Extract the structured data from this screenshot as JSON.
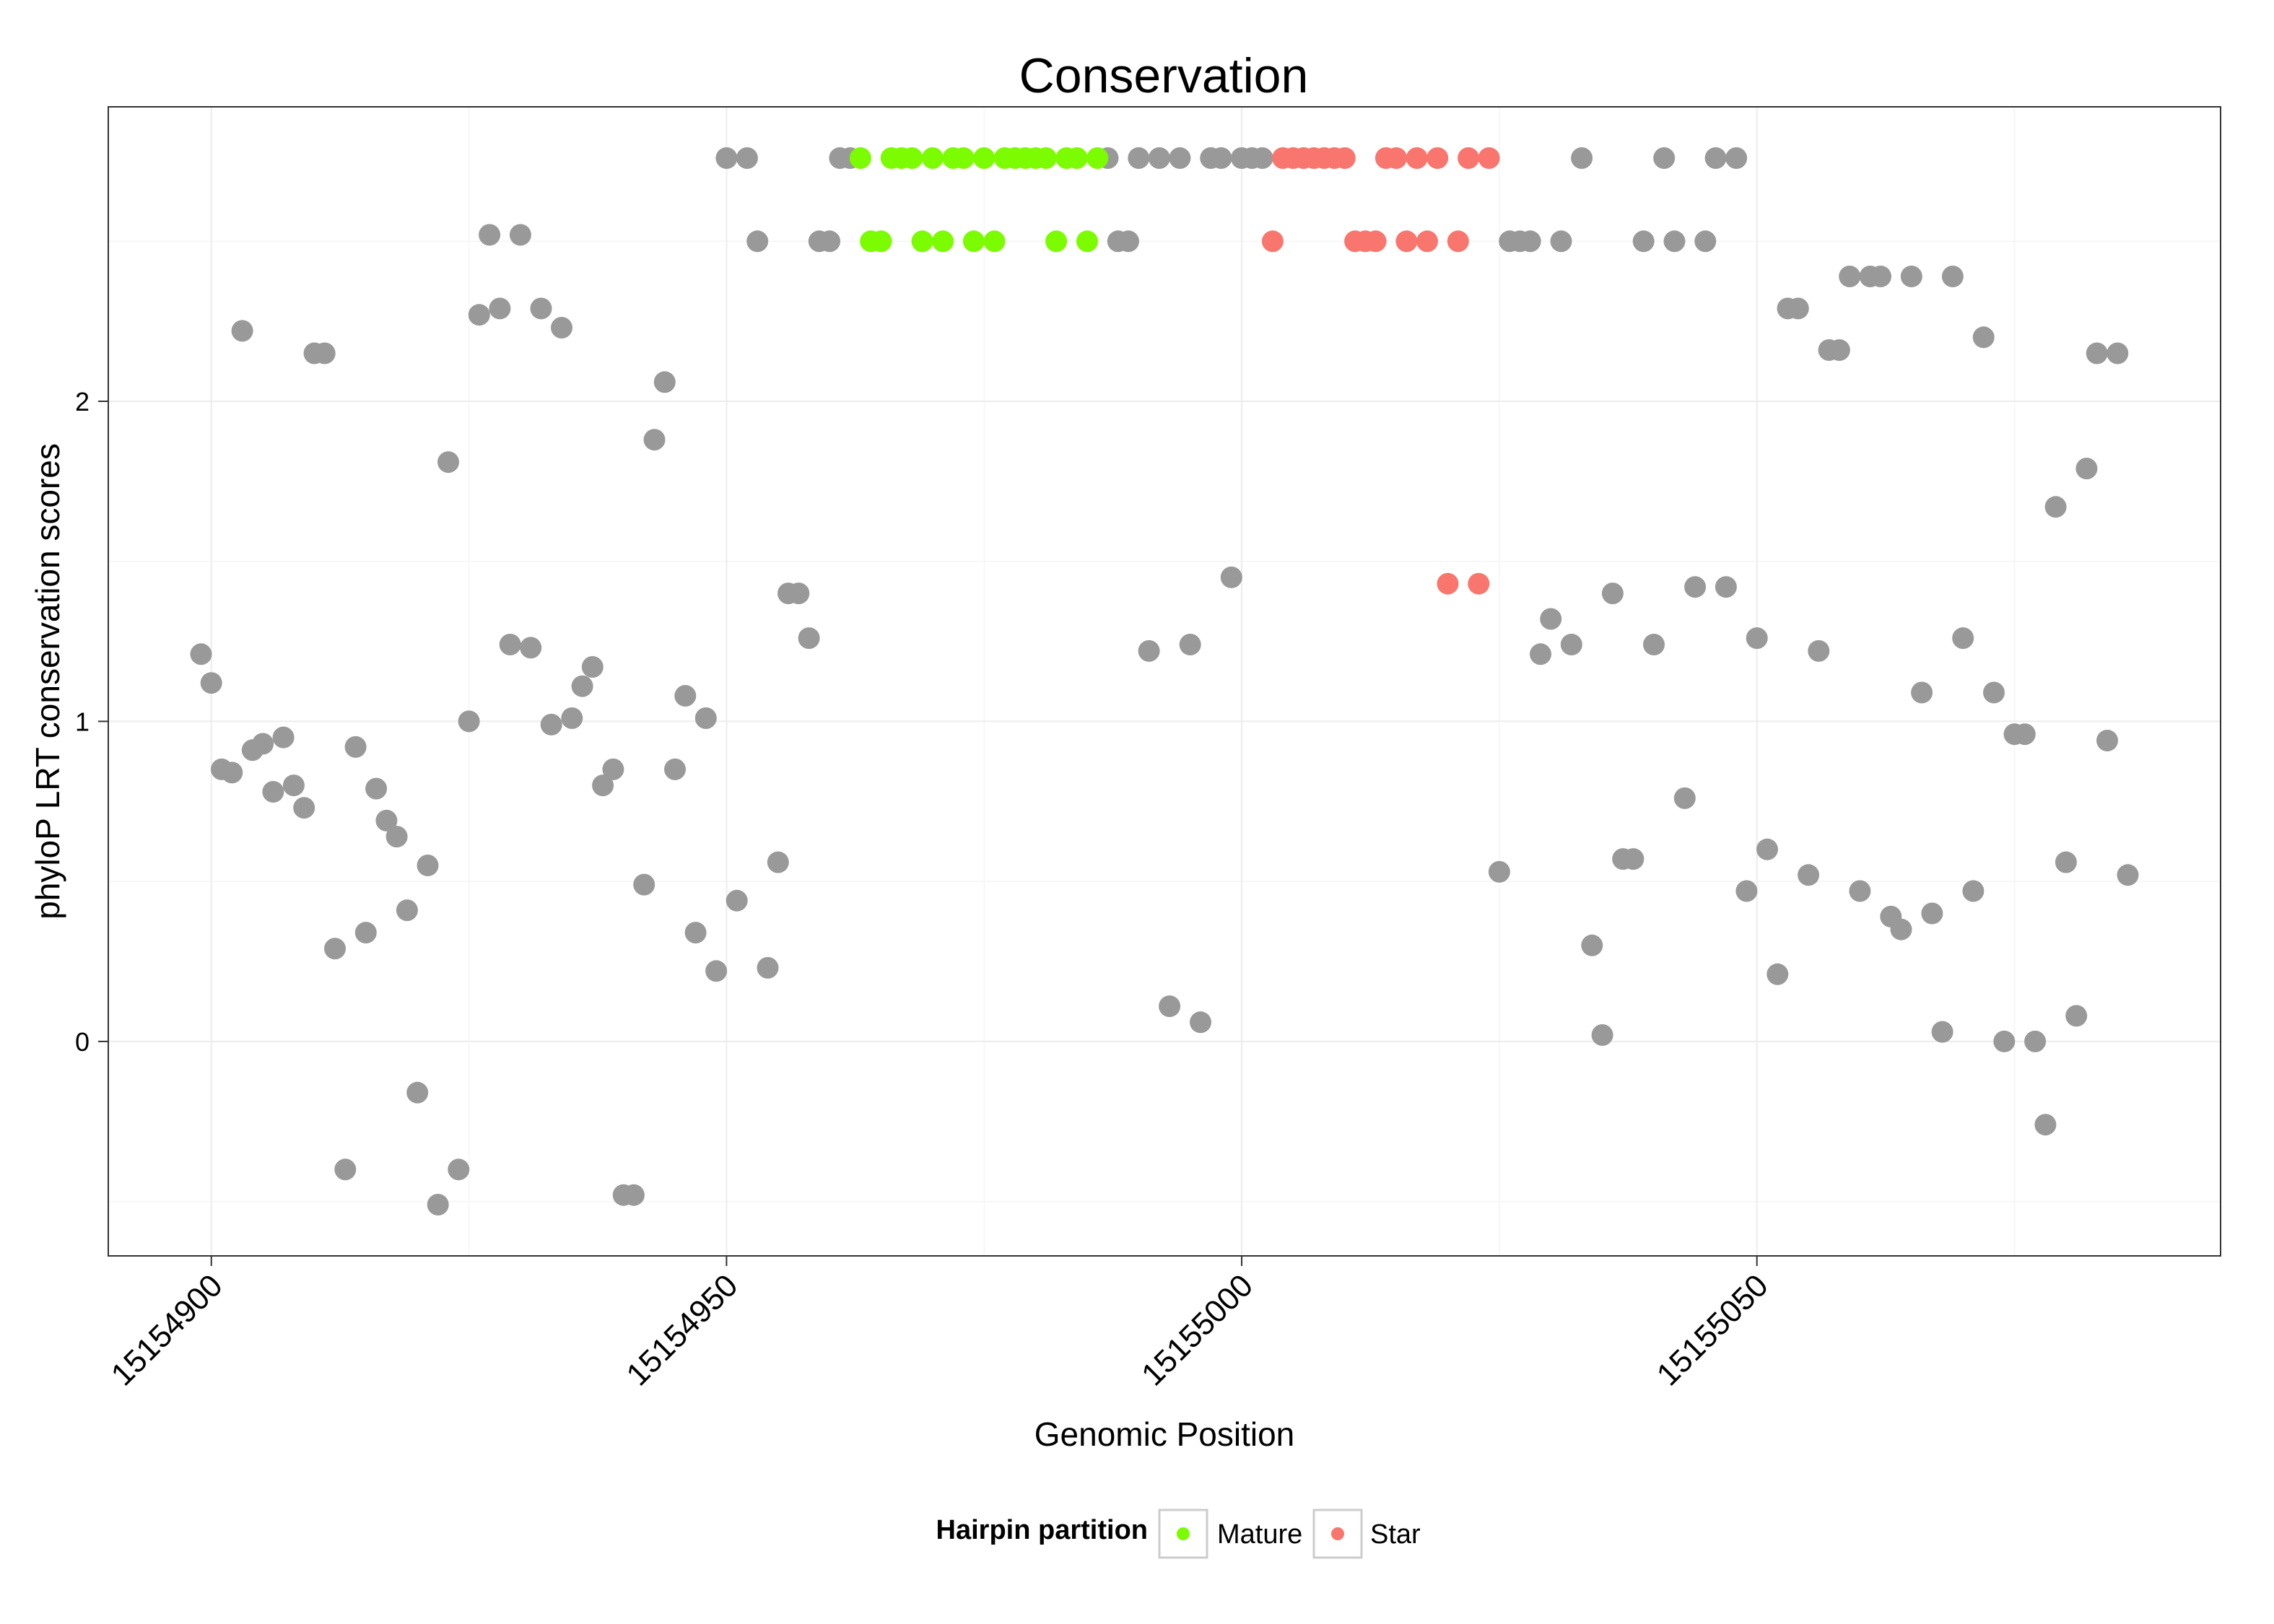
{
  "chart_data": {
    "type": "scatter",
    "title": "Conservation",
    "xlabel": "Genomic Position",
    "ylabel": "phyloP LRT conservation scores",
    "xlim": [
      15154890,
      15155095
    ],
    "ylim": [
      -0.67,
      2.92
    ],
    "x_ticks": [
      15154900,
      15154950,
      15155000,
      15155050
    ],
    "x_tick_labels": [
      "15154900",
      "15154950",
      "15155000",
      "15155050"
    ],
    "y_ticks": [
      0,
      1,
      2
    ],
    "y_tick_labels": [
      "0",
      "1",
      "2"
    ],
    "grid": true,
    "legend": {
      "title": "Hairpin partition",
      "position": "bottom",
      "entries": [
        {
          "label": "Mature",
          "color": "#7CFC00"
        },
        {
          "label": "Star",
          "color": "#F8766D"
        }
      ]
    },
    "colors": {
      "Other": "#999999",
      "Mature": "#7CFC00",
      "Star": "#F8766D"
    },
    "points": [
      [
        15154899,
        1.21,
        "Other"
      ],
      [
        15154900,
        1.12,
        "Other"
      ],
      [
        15154901,
        0.85,
        "Other"
      ],
      [
        15154902,
        0.84,
        "Other"
      ],
      [
        15154903,
        2.22,
        "Other"
      ],
      [
        15154904,
        0.91,
        "Other"
      ],
      [
        15154905,
        0.93,
        "Other"
      ],
      [
        15154906,
        0.78,
        "Other"
      ],
      [
        15154907,
        0.95,
        "Other"
      ],
      [
        15154908,
        0.8,
        "Other"
      ],
      [
        15154909,
        0.73,
        "Other"
      ],
      [
        15154910,
        2.15,
        "Other"
      ],
      [
        15154911,
        2.15,
        "Other"
      ],
      [
        15154912,
        0.29,
        "Other"
      ],
      [
        15154913,
        -0.4,
        "Other"
      ],
      [
        15154914,
        0.92,
        "Other"
      ],
      [
        15154915,
        0.34,
        "Other"
      ],
      [
        15154916,
        0.79,
        "Other"
      ],
      [
        15154917,
        0.69,
        "Other"
      ],
      [
        15154918,
        0.64,
        "Other"
      ],
      [
        15154919,
        0.41,
        "Other"
      ],
      [
        15154920,
        -0.16,
        "Other"
      ],
      [
        15154921,
        0.55,
        "Other"
      ],
      [
        15154922,
        -0.51,
        "Other"
      ],
      [
        15154923,
        1.81,
        "Other"
      ],
      [
        15154924,
        -0.4,
        "Other"
      ],
      [
        15154925,
        1.0,
        "Other"
      ],
      [
        15154926,
        2.27,
        "Other"
      ],
      [
        15154927,
        2.52,
        "Other"
      ],
      [
        15154928,
        2.29,
        "Other"
      ],
      [
        15154929,
        1.24,
        "Other"
      ],
      [
        15154930,
        2.52,
        "Other"
      ],
      [
        15154931,
        1.23,
        "Other"
      ],
      [
        15154932,
        2.29,
        "Other"
      ],
      [
        15154933,
        0.99,
        "Other"
      ],
      [
        15154934,
        2.23,
        "Other"
      ],
      [
        15154935,
        1.01,
        "Other"
      ],
      [
        15154936,
        1.11,
        "Other"
      ],
      [
        15154937,
        1.17,
        "Other"
      ],
      [
        15154938,
        0.8,
        "Other"
      ],
      [
        15154939,
        0.85,
        "Other"
      ],
      [
        15154940,
        -0.48,
        "Other"
      ],
      [
        15154941,
        -0.48,
        "Other"
      ],
      [
        15154942,
        0.49,
        "Other"
      ],
      [
        15154943,
        1.88,
        "Other"
      ],
      [
        15154944,
        2.06,
        "Other"
      ],
      [
        15154945,
        0.85,
        "Other"
      ],
      [
        15154946,
        1.08,
        "Other"
      ],
      [
        15154947,
        0.34,
        "Other"
      ],
      [
        15154948,
        1.01,
        "Other"
      ],
      [
        15154949,
        0.22,
        "Other"
      ],
      [
        15154950,
        2.76,
        "Other"
      ],
      [
        15154951,
        0.44,
        "Other"
      ],
      [
        15154952,
        2.76,
        "Other"
      ],
      [
        15154953,
        2.5,
        "Other"
      ],
      [
        15154954,
        0.23,
        "Other"
      ],
      [
        15154955,
        0.56,
        "Other"
      ],
      [
        15154956,
        1.4,
        "Other"
      ],
      [
        15154957,
        1.4,
        "Other"
      ],
      [
        15154958,
        1.26,
        "Other"
      ],
      [
        15154959,
        2.5,
        "Other"
      ],
      [
        15154960,
        2.5,
        "Other"
      ],
      [
        15154961,
        2.76,
        "Other"
      ],
      [
        15154962,
        2.76,
        "Other"
      ],
      [
        15154963,
        2.76,
        "Mature"
      ],
      [
        15154964,
        2.5,
        "Mature"
      ],
      [
        15154965,
        2.5,
        "Mature"
      ],
      [
        15154966,
        2.76,
        "Mature"
      ],
      [
        15154967,
        2.76,
        "Mature"
      ],
      [
        15154968,
        2.76,
        "Mature"
      ],
      [
        15154969,
        2.5,
        "Mature"
      ],
      [
        15154970,
        2.76,
        "Mature"
      ],
      [
        15154971,
        2.5,
        "Mature"
      ],
      [
        15154972,
        2.76,
        "Mature"
      ],
      [
        15154973,
        2.76,
        "Mature"
      ],
      [
        15154974,
        2.5,
        "Mature"
      ],
      [
        15154975,
        2.76,
        "Mature"
      ],
      [
        15154976,
        2.5,
        "Mature"
      ],
      [
        15154977,
        2.76,
        "Mature"
      ],
      [
        15154978,
        2.76,
        "Mature"
      ],
      [
        15154979,
        2.76,
        "Mature"
      ],
      [
        15154980,
        2.76,
        "Mature"
      ],
      [
        15154981,
        2.76,
        "Mature"
      ],
      [
        15154982,
        2.5,
        "Mature"
      ],
      [
        15154983,
        2.76,
        "Mature"
      ],
      [
        15154984,
        2.76,
        "Mature"
      ],
      [
        15154985,
        2.5,
        "Mature"
      ],
      [
        15154986,
        2.76,
        "Mature"
      ],
      [
        15154987,
        2.76,
        "Other"
      ],
      [
        15154988,
        2.5,
        "Other"
      ],
      [
        15154989,
        2.5,
        "Other"
      ],
      [
        15154990,
        2.76,
        "Other"
      ],
      [
        15154991,
        1.22,
        "Other"
      ],
      [
        15154992,
        2.76,
        "Other"
      ],
      [
        15154993,
        0.11,
        "Other"
      ],
      [
        15154994,
        2.76,
        "Other"
      ],
      [
        15154995,
        1.24,
        "Other"
      ],
      [
        15154996,
        0.06,
        "Other"
      ],
      [
        15154997,
        2.76,
        "Other"
      ],
      [
        15154998,
        2.76,
        "Other"
      ],
      [
        15154999,
        1.45,
        "Other"
      ],
      [
        15155000,
        2.76,
        "Other"
      ],
      [
        15155001,
        2.76,
        "Other"
      ],
      [
        15155002,
        2.76,
        "Other"
      ],
      [
        15155003,
        2.5,
        "Star"
      ],
      [
        15155004,
        2.76,
        "Star"
      ],
      [
        15155005,
        2.76,
        "Star"
      ],
      [
        15155006,
        2.76,
        "Star"
      ],
      [
        15155007,
        2.76,
        "Star"
      ],
      [
        15155008,
        2.76,
        "Star"
      ],
      [
        15155009,
        2.76,
        "Star"
      ],
      [
        15155010,
        2.76,
        "Star"
      ],
      [
        15155011,
        2.5,
        "Star"
      ],
      [
        15155012,
        2.5,
        "Star"
      ],
      [
        15155013,
        2.5,
        "Star"
      ],
      [
        15155014,
        2.76,
        "Star"
      ],
      [
        15155015,
        2.76,
        "Star"
      ],
      [
        15155016,
        2.5,
        "Star"
      ],
      [
        15155017,
        2.76,
        "Star"
      ],
      [
        15155018,
        2.5,
        "Star"
      ],
      [
        15155019,
        2.76,
        "Star"
      ],
      [
        15155020,
        1.43,
        "Star"
      ],
      [
        15155021,
        2.5,
        "Star"
      ],
      [
        15155022,
        2.76,
        "Star"
      ],
      [
        15155023,
        1.43,
        "Star"
      ],
      [
        15155024,
        2.76,
        "Star"
      ],
      [
        15155025,
        0.53,
        "Other"
      ],
      [
        15155026,
        2.5,
        "Other"
      ],
      [
        15155027,
        2.5,
        "Other"
      ],
      [
        15155028,
        2.5,
        "Other"
      ],
      [
        15155029,
        1.21,
        "Other"
      ],
      [
        15155030,
        1.32,
        "Other"
      ],
      [
        15155031,
        2.5,
        "Other"
      ],
      [
        15155032,
        1.24,
        "Other"
      ],
      [
        15155033,
        2.76,
        "Other"
      ],
      [
        15155034,
        0.3,
        "Other"
      ],
      [
        15155035,
        0.02,
        "Other"
      ],
      [
        15155036,
        1.4,
        "Other"
      ],
      [
        15155037,
        0.57,
        "Other"
      ],
      [
        15155038,
        0.57,
        "Other"
      ],
      [
        15155039,
        2.5,
        "Other"
      ],
      [
        15155040,
        1.24,
        "Other"
      ],
      [
        15155041,
        2.76,
        "Other"
      ],
      [
        15155042,
        2.5,
        "Other"
      ],
      [
        15155043,
        0.76,
        "Other"
      ],
      [
        15155044,
        1.42,
        "Other"
      ],
      [
        15155045,
        2.5,
        "Other"
      ],
      [
        15155046,
        2.76,
        "Other"
      ],
      [
        15155047,
        1.42,
        "Other"
      ],
      [
        15155048,
        2.76,
        "Other"
      ],
      [
        15155049,
        0.47,
        "Other"
      ],
      [
        15155050,
        1.26,
        "Other"
      ],
      [
        15155051,
        0.6,
        "Other"
      ],
      [
        15155052,
        0.21,
        "Other"
      ],
      [
        15155053,
        2.29,
        "Other"
      ],
      [
        15155054,
        2.29,
        "Other"
      ],
      [
        15155055,
        0.52,
        "Other"
      ],
      [
        15155056,
        1.22,
        "Other"
      ],
      [
        15155057,
        2.16,
        "Other"
      ],
      [
        15155058,
        2.16,
        "Other"
      ],
      [
        15155059,
        2.39,
        "Other"
      ],
      [
        15155060,
        0.47,
        "Other"
      ],
      [
        15155061,
        2.39,
        "Other"
      ],
      [
        15155062,
        2.39,
        "Other"
      ],
      [
        15155063,
        0.39,
        "Other"
      ],
      [
        15155064,
        0.35,
        "Other"
      ],
      [
        15155065,
        2.39,
        "Other"
      ],
      [
        15155066,
        1.09,
        "Other"
      ],
      [
        15155067,
        0.4,
        "Other"
      ],
      [
        15155068,
        0.03,
        "Other"
      ],
      [
        15155069,
        2.39,
        "Other"
      ],
      [
        15155070,
        1.26,
        "Other"
      ],
      [
        15155071,
        0.47,
        "Other"
      ],
      [
        15155072,
        2.2,
        "Other"
      ],
      [
        15155073,
        1.09,
        "Other"
      ],
      [
        15155074,
        0.0,
        "Other"
      ],
      [
        15155075,
        0.96,
        "Other"
      ],
      [
        15155076,
        0.96,
        "Other"
      ],
      [
        15155077,
        0.0,
        "Other"
      ],
      [
        15155078,
        -0.26,
        "Other"
      ],
      [
        15155079,
        1.67,
        "Other"
      ],
      [
        15155080,
        0.56,
        "Other"
      ],
      [
        15155081,
        0.08,
        "Other"
      ],
      [
        15155082,
        1.79,
        "Other"
      ],
      [
        15155083,
        2.15,
        "Other"
      ],
      [
        15155084,
        0.94,
        "Other"
      ],
      [
        15155085,
        2.15,
        "Other"
      ],
      [
        15155086,
        0.52,
        "Other"
      ]
    ]
  }
}
